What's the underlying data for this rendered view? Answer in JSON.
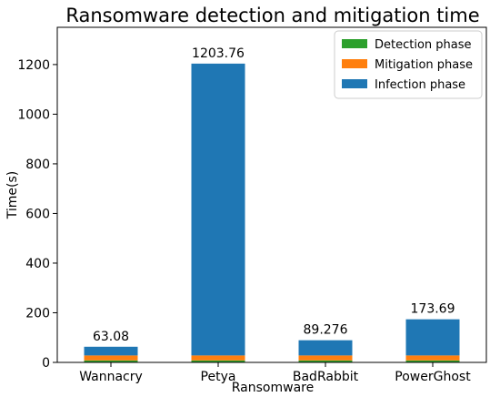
{
  "chart_data": {
    "type": "bar",
    "stacked": true,
    "title": "Ransomware detection and mitigation time",
    "xlabel": "Ransomware",
    "ylabel": "Time(s)",
    "ylim": [
      0,
      1350
    ],
    "yticks": [
      0,
      200,
      400,
      600,
      800,
      1000,
      1200
    ],
    "grid": false,
    "legend_position": "top-right",
    "categories": [
      "Wannacry",
      "Petya",
      "BadRabbit",
      "PowerGhost"
    ],
    "totals_labels": [
      "63.08",
      "1203.76",
      "89.276",
      "173.69"
    ],
    "series": [
      {
        "name": "Detection phase",
        "color": "#2ca02c",
        "values": [
          8,
          8,
          8,
          8
        ]
      },
      {
        "name": "Mitigation phase",
        "color": "#ff7f0e",
        "values": [
          20,
          20,
          20,
          20
        ]
      },
      {
        "name": "Infection phase",
        "color": "#1f77b4",
        "values": [
          35.08,
          1175.76,
          61.276,
          145.69
        ]
      }
    ]
  }
}
